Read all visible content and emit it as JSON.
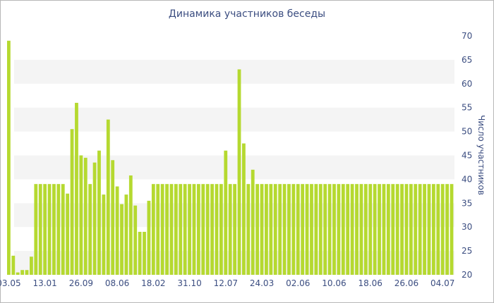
{
  "chart_data": {
    "type": "bar",
    "title": "Динамика участников беседы",
    "xlabel": "",
    "ylabel": "Число участников",
    "ylim": [
      20,
      70
    ],
    "y_ticks": [
      20,
      25,
      30,
      35,
      40,
      45,
      50,
      55,
      60,
      65,
      70
    ],
    "y_axis_position": "right",
    "grid": "horizontal-bands",
    "bar_color": "#b5d930",
    "x_tick_labels": [
      "03.05",
      "13.01",
      "26.09",
      "08.06",
      "18.02",
      "31.10",
      "12.07",
      "24.03",
      "02.06",
      "10.06",
      "18.06",
      "26.06",
      "04.07"
    ],
    "x_tick_label_bar_index": [
      0,
      8,
      16,
      24,
      32,
      40,
      48,
      56,
      64,
      72,
      80,
      88,
      96
    ],
    "values": [
      69,
      24,
      20.5,
      21,
      21,
      23.8,
      39,
      39,
      39,
      39,
      39,
      39,
      39,
      37,
      50.5,
      56,
      45,
      44.5,
      39,
      43.5,
      46,
      36.8,
      52.5,
      44,
      38.5,
      34.8,
      36.8,
      40.8,
      34.5,
      29,
      29,
      35.5,
      39,
      39,
      39,
      39,
      39,
      39,
      39,
      39,
      39,
      39,
      39,
      39,
      39,
      39,
      39,
      39,
      46,
      39,
      39,
      63,
      47.5,
      39,
      42,
      39,
      39,
      39,
      39,
      39,
      39,
      39,
      39,
      39,
      39,
      39,
      39,
      39,
      39,
      39,
      39,
      39,
      39,
      39,
      39,
      39,
      39,
      39,
      39,
      39,
      39,
      39,
      39,
      39,
      39,
      39,
      39,
      39,
      39,
      39,
      39,
      39,
      39,
      39,
      39,
      39,
      39,
      39,
      39
    ]
  }
}
